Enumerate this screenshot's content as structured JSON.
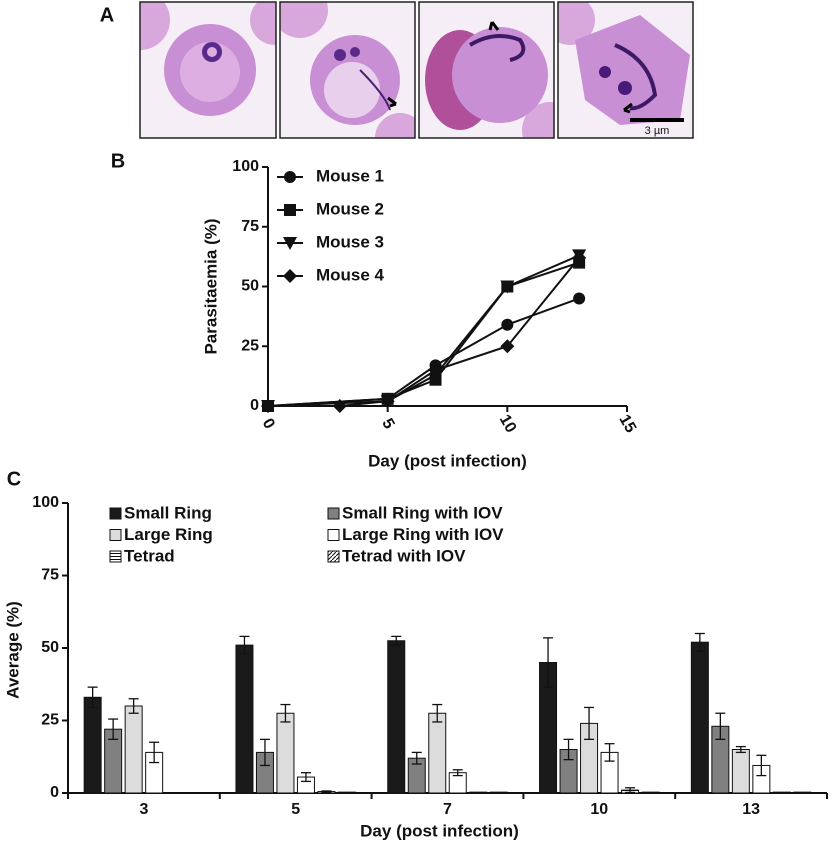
{
  "panel_labels": [
    "A",
    "B",
    "C"
  ],
  "scale_bar_label": "3 µm",
  "chart_data": [
    {
      "type": "line",
      "xlabel": "Day (post infection)",
      "ylabel": "Parasitaemia (%)",
      "xlim": [
        0,
        15
      ],
      "ylim": [
        0,
        100
      ],
      "xticks": [
        0,
        5,
        10,
        15
      ],
      "yticks": [
        0,
        25,
        50,
        75,
        100
      ],
      "series": [
        {
          "name": "Mouse 1",
          "marker": "circle",
          "color": "#111111",
          "x": [
            0,
            5,
            7,
            10,
            13
          ],
          "values": [
            0,
            3,
            17,
            34,
            45
          ]
        },
        {
          "name": "Mouse 2",
          "marker": "square",
          "color": "#111111",
          "x": [
            0,
            5,
            7,
            10,
            13
          ],
          "values": [
            0,
            3,
            11,
            50,
            60
          ]
        },
        {
          "name": "Mouse 3",
          "marker": "triangle-down",
          "color": "#111111",
          "x": [
            0,
            5,
            7,
            10,
            13
          ],
          "values": [
            0,
            2,
            13,
            50,
            63
          ]
        },
        {
          "name": "Mouse 4",
          "marker": "diamond",
          "color": "#111111",
          "x": [
            0,
            3,
            5,
            7,
            10,
            13
          ],
          "values": [
            0,
            0,
            2,
            15,
            25,
            62
          ]
        }
      ]
    },
    {
      "type": "bar",
      "xlabel": "Day (post infection)",
      "ylabel": "Average (%)",
      "categories": [
        "3",
        "5",
        "7",
        "10",
        "13"
      ],
      "ylim": [
        0,
        100
      ],
      "yticks": [
        0,
        25,
        50,
        75,
        100
      ],
      "series": [
        {
          "name": "Small Ring",
          "color": "#1a1a1a",
          "values": [
            33,
            51,
            52.5,
            45,
            52
          ],
          "errors": [
            3.5,
            3,
            1.5,
            8.5,
            3
          ]
        },
        {
          "name": "Small Ring with IOV",
          "color": "#808080",
          "values": [
            22,
            14,
            12,
            15,
            23
          ],
          "errors": [
            3.5,
            4.5,
            2,
            3.5,
            4.5
          ]
        },
        {
          "name": "Large Ring",
          "color": "#dcdcdc",
          "values": [
            30,
            27.5,
            27.5,
            24,
            15
          ],
          "errors": [
            2.5,
            3,
            3,
            5.5,
            1
          ]
        },
        {
          "name": "Large Ring with IOV",
          "color": "#ffffff",
          "values": [
            14,
            5.5,
            7,
            14,
            9.5
          ],
          "errors": [
            3.5,
            1.5,
            1,
            3,
            3.5
          ]
        },
        {
          "name": "Tetrad",
          "color": "#ffffff",
          "pattern": "horizontal",
          "values": [
            0,
            0.5,
            0.3,
            1,
            0.3
          ],
          "errors": [
            0,
            0.2,
            0,
            0.8,
            0
          ]
        },
        {
          "name": "Tetrad with IOV",
          "color": "#ffffff",
          "pattern": "diagonal",
          "values": [
            0,
            0.3,
            0.3,
            0.3,
            0.3
          ],
          "errors": [
            0,
            0,
            0,
            0,
            0
          ]
        }
      ]
    }
  ]
}
